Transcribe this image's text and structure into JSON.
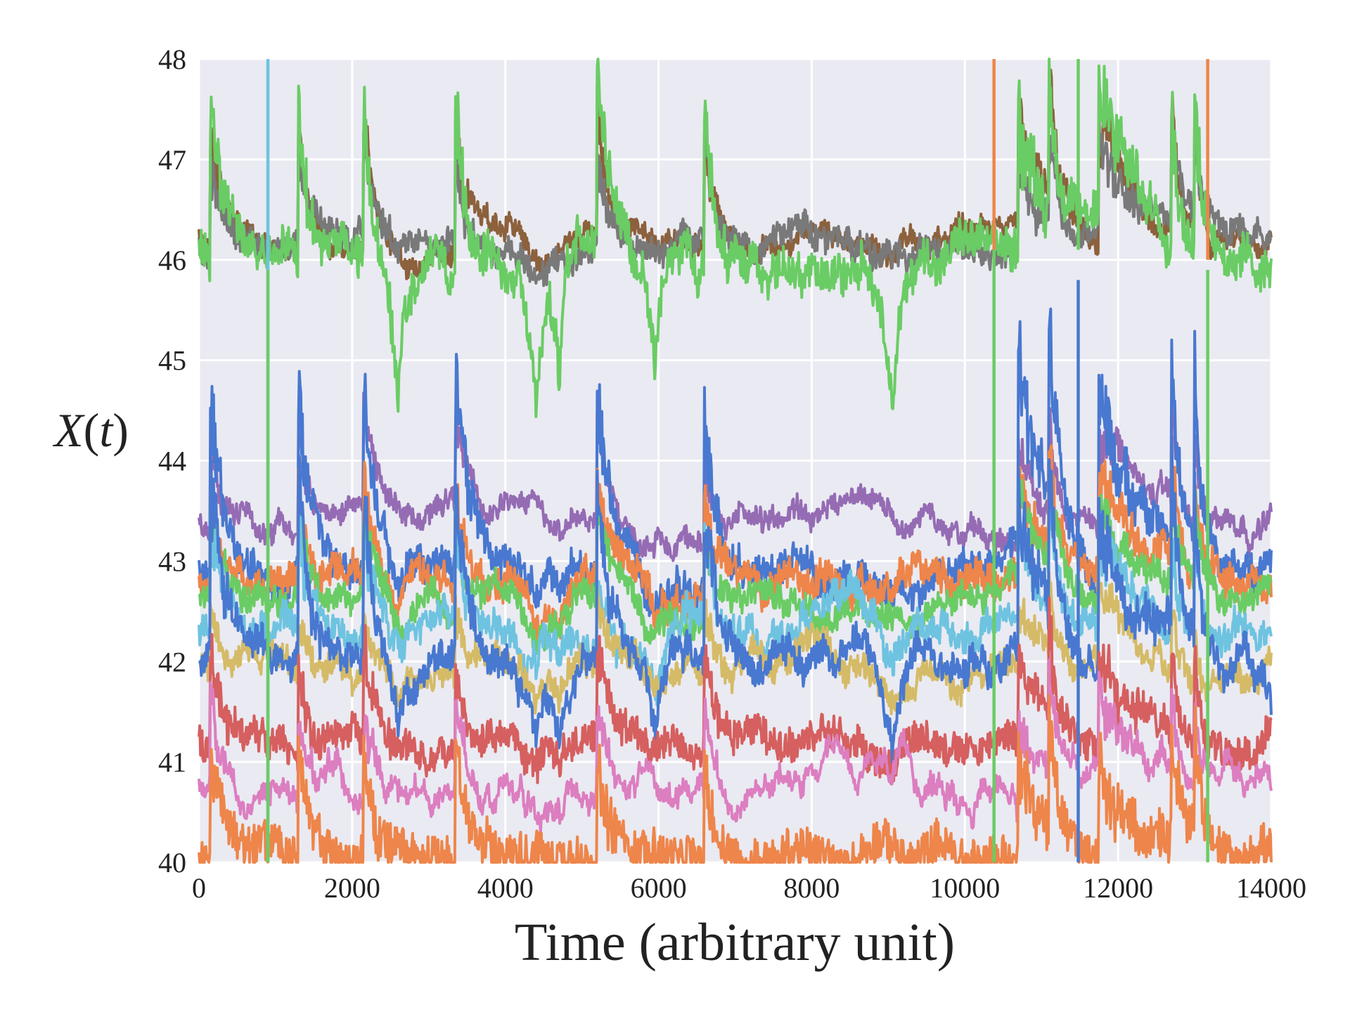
{
  "chart_data": {
    "type": "line",
    "title": "",
    "xlabel": "Time (arbitrary unit)",
    "ylabel_var": "X",
    "ylabel_arg": "t",
    "xlim": [
      0,
      14000
    ],
    "ylim": [
      40,
      48
    ],
    "xticks": [
      0,
      2000,
      4000,
      6000,
      8000,
      10000,
      12000,
      14000
    ],
    "yticks": [
      40,
      41,
      42,
      43,
      44,
      45,
      46,
      47,
      48
    ],
    "xtick_labels": [
      "0",
      "2000",
      "4000",
      "6000",
      "8000",
      "10000",
      "12000",
      "14000"
    ],
    "ytick_labels": [
      "40",
      "41",
      "42",
      "43",
      "44",
      "45",
      "46",
      "47",
      "48"
    ],
    "grid": true,
    "background": "#eaeaf2",
    "grid_color": "#ffffff",
    "legend": "none",
    "vertical_lines": [
      {
        "x": 900,
        "ymin": 40,
        "ymax": 48,
        "color": "#6ec3e0"
      },
      {
        "x": 900,
        "ymin": 40,
        "ymax": 45.9,
        "color": "#6acc64"
      },
      {
        "x": 10380,
        "ymin": 46.1,
        "ymax": 48,
        "color": "#ee854a"
      },
      {
        "x": 10380,
        "ymin": 40,
        "ymax": 46.1,
        "color": "#6acc64"
      },
      {
        "x": 11480,
        "ymin": 46.1,
        "ymax": 48,
        "color": "#6acc64"
      },
      {
        "x": 11480,
        "ymin": 40,
        "ymax": 45.8,
        "color": "#4878d0"
      },
      {
        "x": 13170,
        "ymin": 46.0,
        "ymax": 48,
        "color": "#ee854a"
      },
      {
        "x": 13170,
        "ymin": 40,
        "ymax": 45.9,
        "color": "#6acc64"
      }
    ],
    "events": [
      {
        "x": 150,
        "width": 200
      },
      {
        "x": 1300,
        "width": 150
      },
      {
        "x": 2150,
        "width": 160
      },
      {
        "x": 3350,
        "width": 180
      },
      {
        "x": 5200,
        "width": 180
      },
      {
        "x": 6600,
        "width": 150
      },
      {
        "x": 10700,
        "width": 350
      },
      {
        "x": 11100,
        "width": 120
      },
      {
        "x": 11750,
        "width": 500
      },
      {
        "x": 12700,
        "width": 100
      },
      {
        "x": 13000,
        "width": 90
      }
    ],
    "dips": [
      {
        "x": 4400,
        "width": 120
      },
      {
        "x": 5950,
        "width": 130
      },
      {
        "x": 2600,
        "width": 120
      },
      {
        "x": 9050,
        "width": 150
      },
      {
        "x": 4700,
        "width": 80
      }
    ],
    "series": [
      {
        "color": "#8c613c",
        "base": 46.2,
        "noise": 0.1,
        "wander": 0.08,
        "spike": 1.2,
        "dip": 0.1,
        "seed": 11
      },
      {
        "color": "#797979",
        "base": 46.15,
        "noise": 0.12,
        "wander": 0.08,
        "spike": 0.9,
        "dip": 0.15,
        "seed": 12
      },
      {
        "color": "#6acc64",
        "base": 46.05,
        "noise": 0.18,
        "wander": 0.12,
        "spike": 1.5,
        "dip": 1.4,
        "seed": 13
      },
      {
        "color": "#956cb4",
        "base": 43.4,
        "noise": 0.09,
        "wander": 0.1,
        "spike": 0.9,
        "dip": 0.0,
        "seed": 14
      },
      {
        "color": "#4878d0",
        "base": 42.9,
        "noise": 0.15,
        "wander": 0.1,
        "spike": 1.8,
        "dip": 0.4,
        "seed": 15
      },
      {
        "color": "#ee854a",
        "base": 42.8,
        "noise": 0.15,
        "wander": 0.1,
        "spike": 0.9,
        "dip": 0.4,
        "seed": 16
      },
      {
        "color": "#6acc64",
        "base": 42.6,
        "noise": 0.12,
        "wander": 0.1,
        "spike": 0.8,
        "dip": 0.3,
        "seed": 17
      },
      {
        "color": "#6ec3e0",
        "base": 42.35,
        "noise": 0.14,
        "wander": 0.12,
        "spike": 0.9,
        "dip": 0.3,
        "seed": 18
      },
      {
        "color": "#d5bb67",
        "base": 41.95,
        "noise": 0.12,
        "wander": 0.1,
        "spike": 0.6,
        "dip": 0.3,
        "seed": 19
      },
      {
        "color": "#4878d0",
        "base": 42.0,
        "noise": 0.14,
        "wander": 0.12,
        "spike": 1.6,
        "dip": 0.8,
        "seed": 20
      },
      {
        "color": "#d65f5f",
        "base": 41.2,
        "noise": 0.16,
        "wander": 0.08,
        "spike": 0.9,
        "dip": 0.2,
        "seed": 21
      },
      {
        "color": "#dc7ec0",
        "base": 40.75,
        "noise": 0.08,
        "wander": 0.14,
        "spike": 0.8,
        "dip": 0.0,
        "seed": 22
      },
      {
        "color": "#ee854a",
        "base": 40.05,
        "noise": 0.22,
        "wander": 0.08,
        "spike": 1.0,
        "dip": 0.0,
        "seed": 23
      }
    ]
  }
}
